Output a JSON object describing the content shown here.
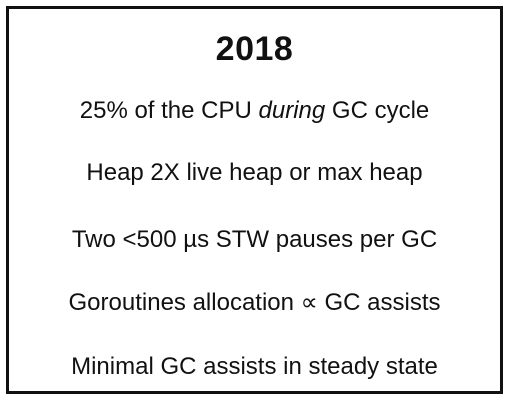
{
  "title": "2018",
  "lines": [
    {
      "before": "25% of the CPU ",
      "emphasis": "during",
      "after": " GC cycle"
    },
    {
      "text": "Heap 2X live heap or max heap"
    },
    {
      "text": "Two <500 µs STW pauses per GC"
    },
    {
      "text": "Goroutines allocation ∝ GC assists"
    },
    {
      "text": "Minimal GC assists in steady state"
    }
  ]
}
